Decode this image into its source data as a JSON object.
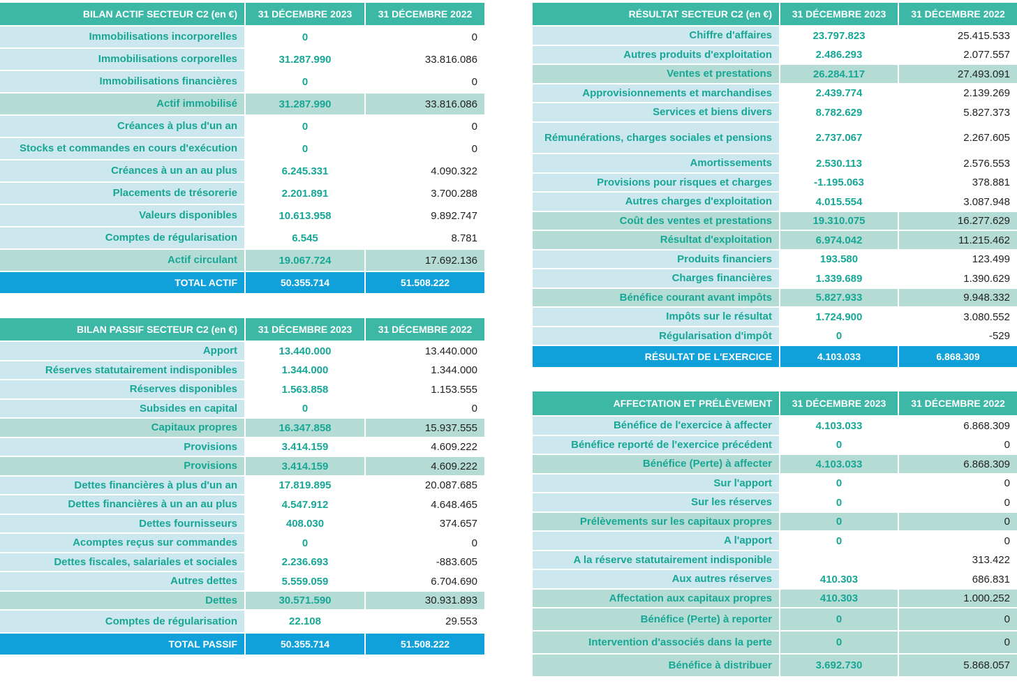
{
  "actif": {
    "header": {
      "label": "BILAN ACTIF  SECTEUR C2 (en €)",
      "col2023": "31 DÉCEMBRE 2023",
      "col2022": "31 DÉCEMBRE 2022"
    },
    "rows": [
      {
        "label": "Immobilisations incorporelles",
        "v2023": "0",
        "v2022": "0",
        "type": "norm",
        "h": 32
      },
      {
        "label": "Immobilisations corporelles",
        "v2023": "31.287.990",
        "v2022": "33.816.086",
        "type": "norm",
        "h": 32
      },
      {
        "label": "Immobilisations financières",
        "v2023": "0",
        "v2022": "0",
        "type": "norm",
        "h": 32
      },
      {
        "label": "Actif immobilisé",
        "v2023": "31.287.990",
        "v2022": "33.816.086",
        "type": "sub",
        "h": 32
      },
      {
        "label": "Créances à plus d'un an",
        "v2023": "0",
        "v2022": "0",
        "type": "norm",
        "h": 32
      },
      {
        "label": "Stocks et commandes en cours d'exécution",
        "v2023": "0",
        "v2022": "0",
        "type": "norm",
        "h": 32
      },
      {
        "label": "Créances à un an au plus",
        "v2023": "6.245.331",
        "v2022": "4.090.322",
        "type": "norm",
        "h": 32
      },
      {
        "label": "Placements de trésorerie",
        "v2023": "2.201.891",
        "v2022": "3.700.288",
        "type": "norm",
        "h": 32
      },
      {
        "label": "Valeurs disponibles",
        "v2023": "10.613.958",
        "v2022": "9.892.747",
        "type": "norm",
        "h": 32
      },
      {
        "label": "Comptes de régularisation",
        "v2023": "6.545",
        "v2022": "8.781",
        "type": "norm",
        "h": 32
      },
      {
        "label": "Actif circulant",
        "v2023": "19.067.724",
        "v2022": "17.692.136",
        "type": "sub",
        "h": 32
      },
      {
        "label": "TOTAL ACTIF",
        "v2023": "50.355.714",
        "v2022": "51.508.222",
        "type": "total",
        "h": 32
      }
    ]
  },
  "passif": {
    "header": {
      "label": "BILAN PASSIF  SECTEUR C2 (en €)",
      "col2023": "31 DÉCEMBRE 2023",
      "col2022": "31 DÉCEMBRE 2022"
    },
    "rows": [
      {
        "label": "Apport",
        "v2023": "13.440.000",
        "v2022": "13.440.000",
        "type": "norm",
        "h": 28
      },
      {
        "label": "Réserves statutairement indisponibles",
        "v2023": "1.344.000",
        "v2022": "1.344.000",
        "type": "norm",
        "h": 27
      },
      {
        "label": "Réserves disponibles",
        "v2023": "1.563.858",
        "v2022": "1.153.555",
        "type": "norm",
        "h": 28
      },
      {
        "label": "Subsides en capital",
        "v2023": "0",
        "v2022": "0",
        "type": "norm",
        "h": 27
      },
      {
        "label": "Capitaux propres",
        "v2023": "16.347.858",
        "v2022": "15.937.555",
        "type": "sub",
        "h": 28
      },
      {
        "label": "Provisions",
        "v2023": "3.414.159",
        "v2022": "4.609.222",
        "type": "norm",
        "h": 27
      },
      {
        "label": "Provisions",
        "v2023": "3.414.159",
        "v2022": "4.609.222",
        "type": "sub",
        "h": 28
      },
      {
        "label": "Dettes financières à plus d'un an",
        "v2023": "17.819.895",
        "v2022": "20.087.685",
        "type": "norm",
        "h": 27
      },
      {
        "label": "Dettes financières à un an au plus",
        "v2023": "4.547.912",
        "v2022": "4.648.465",
        "type": "norm",
        "h": 28
      },
      {
        "label": "Dettes fournisseurs",
        "v2023": "408.030",
        "v2022": "374.657",
        "type": "norm",
        "h": 27
      },
      {
        "label": "Acomptes reçus sur commandes",
        "v2023": "0",
        "v2022": "0",
        "type": "norm",
        "h": 28
      },
      {
        "label": "Dettes fiscales, salariales et sociales",
        "v2023": "2.236.693",
        "v2022": "-883.605",
        "type": "norm",
        "h": 27
      },
      {
        "label": "Autres dettes",
        "v2023": "5.559.059",
        "v2022": "6.704.690",
        "type": "norm",
        "h": 28
      },
      {
        "label": "Dettes",
        "v2023": "30.571.590",
        "v2022": "30.931.893",
        "type": "sub",
        "h": 27
      },
      {
        "label": "Comptes de régularisation",
        "v2023": "22.108",
        "v2022": "29.553",
        "type": "norm",
        "h": 33
      },
      {
        "label": "TOTAL PASSIF",
        "v2023": "50.355.714",
        "v2022": "51.508.222",
        "type": "total",
        "h": 32
      }
    ]
  },
  "resultat": {
    "header": {
      "label": "RÉSULTAT SECTEUR C2 (en €)",
      "col2023": "31 DÉCEMBRE 2023",
      "col2022": "31 DÉCEMBRE 2022"
    },
    "rows": [
      {
        "label": "Chiffre d'affaires",
        "v2023": "23.797.823",
        "v2022": "25.415.533",
        "type": "norm",
        "h": 28
      },
      {
        "label": "Autres produits d'exploitation",
        "v2023": "2.486.293",
        "v2022": "2.077.557",
        "type": "norm",
        "h": 27
      },
      {
        "label": "Ventes et prestations",
        "v2023": "26.284.117",
        "v2022": "27.493.091",
        "type": "sub",
        "h": 28
      },
      {
        "label": "Approvisionnements et marchandises",
        "v2023": "2.439.774",
        "v2022": "2.139.269",
        "type": "norm",
        "h": 27
      },
      {
        "label": "Services et biens divers",
        "v2023": "8.782.629",
        "v2022": "5.827.373",
        "type": "norm",
        "h": 28
      },
      {
        "label": "Rémunérations, charges sociales et pensions",
        "v2023": "2.737.067",
        "v2022": "2.267.605",
        "type": "norm",
        "h": 45
      },
      {
        "label": "Amortissements",
        "v2023": "2.530.113",
        "v2022": "2.576.553",
        "type": "norm",
        "h": 28
      },
      {
        "label": "Provisions pour risques et charges",
        "v2023": "-1.195.063",
        "v2022": "378.881",
        "type": "norm",
        "h": 27
      },
      {
        "label": "Autres charges d'exploitation",
        "v2023": "4.015.554",
        "v2022": "3.087.948",
        "type": "norm",
        "h": 28
      },
      {
        "label": "Coût des ventes et prestations",
        "v2023": "19.310.075",
        "v2022": "16.277.629",
        "type": "sub",
        "h": 27
      },
      {
        "label": "Résultat d'exploitation",
        "v2023": "6.974.042",
        "v2022": "11.215.462",
        "type": "sub",
        "h": 28
      },
      {
        "label": "Produits financiers",
        "v2023": "193.580",
        "v2022": "123.499",
        "type": "norm",
        "h": 27
      },
      {
        "label": "Charges financières",
        "v2023": "1.339.689",
        "v2022": "1.390.629",
        "type": "norm",
        "h": 28
      },
      {
        "label": "Bénéfice courant avant impôts",
        "v2023": "5.827.933",
        "v2022": "9.948.332",
        "type": "sub",
        "h": 27
      },
      {
        "label": "Impôts sur le résultat",
        "v2023": "1.724.900",
        "v2022": "3.080.552",
        "type": "norm",
        "h": 28
      },
      {
        "label": "Régularisation d'impôt",
        "v2023": "0",
        "v2022": "-529",
        "type": "norm",
        "h": 27
      },
      {
        "label": "RÉSULTAT DE L'EXERCICE",
        "v2023": "4.103.033",
        "v2022": "6.868.309",
        "type": "total",
        "h": 32
      }
    ]
  },
  "affectation": {
    "header": {
      "label": "AFFECTATION ET PRÉLÈVEMENT",
      "col2023": "31 DÉCEMBRE 2023",
      "col2022": "31 DÉCEMBRE 2022"
    },
    "rows": [
      {
        "label": "Bénéfice de l'exercice à affecter",
        "v2023": "4.103.033",
        "v2022": "6.868.309",
        "type": "norm",
        "h": 28
      },
      {
        "label": "Bénéfice reporté de l'exercice précédent",
        "v2023": "0",
        "v2022": "0",
        "type": "norm",
        "h": 27
      },
      {
        "label": "Bénéfice (Perte) à affecter",
        "v2023": "4.103.033",
        "v2022": "6.868.309",
        "type": "sub",
        "h": 28
      },
      {
        "label": "Sur l'apport",
        "v2023": "0",
        "v2022": "0",
        "type": "norm",
        "h": 27
      },
      {
        "label": "Sur les réserves",
        "v2023": "0",
        "v2022": "0",
        "type": "norm",
        "h": 28
      },
      {
        "label": "Prélèvements sur les capitaux propres",
        "v2023": "0",
        "v2022": "0",
        "type": "sub",
        "h": 27
      },
      {
        "label": "A l'apport",
        "v2023": "0",
        "v2022": "0",
        "type": "norm",
        "h": 28
      },
      {
        "label": "A la réserve statutairement indisponible",
        "v2023": "",
        "v2022": "313.422",
        "type": "norm",
        "h": 27
      },
      {
        "label": "Aux autres réserves",
        "v2023": "410.303",
        "v2022": "686.831",
        "type": "norm",
        "h": 28
      },
      {
        "label": "Affectation aux capitaux propres",
        "v2023": "410.303",
        "v2022": "1.000.252",
        "type": "sub",
        "h": 27
      },
      {
        "label": "Bénéfice (Perte) à reporter",
        "v2023": "0",
        "v2022": "0",
        "type": "sub",
        "h": 33
      },
      {
        "label": "Intervention d'associés dans la perte",
        "v2023": "0",
        "v2022": "0",
        "type": "sub",
        "h": 33
      },
      {
        "label": "Bénéfice à distribuer",
        "v2023": "3.692.730",
        "v2022": "5.868.057",
        "type": "sub",
        "h": 33
      }
    ]
  }
}
